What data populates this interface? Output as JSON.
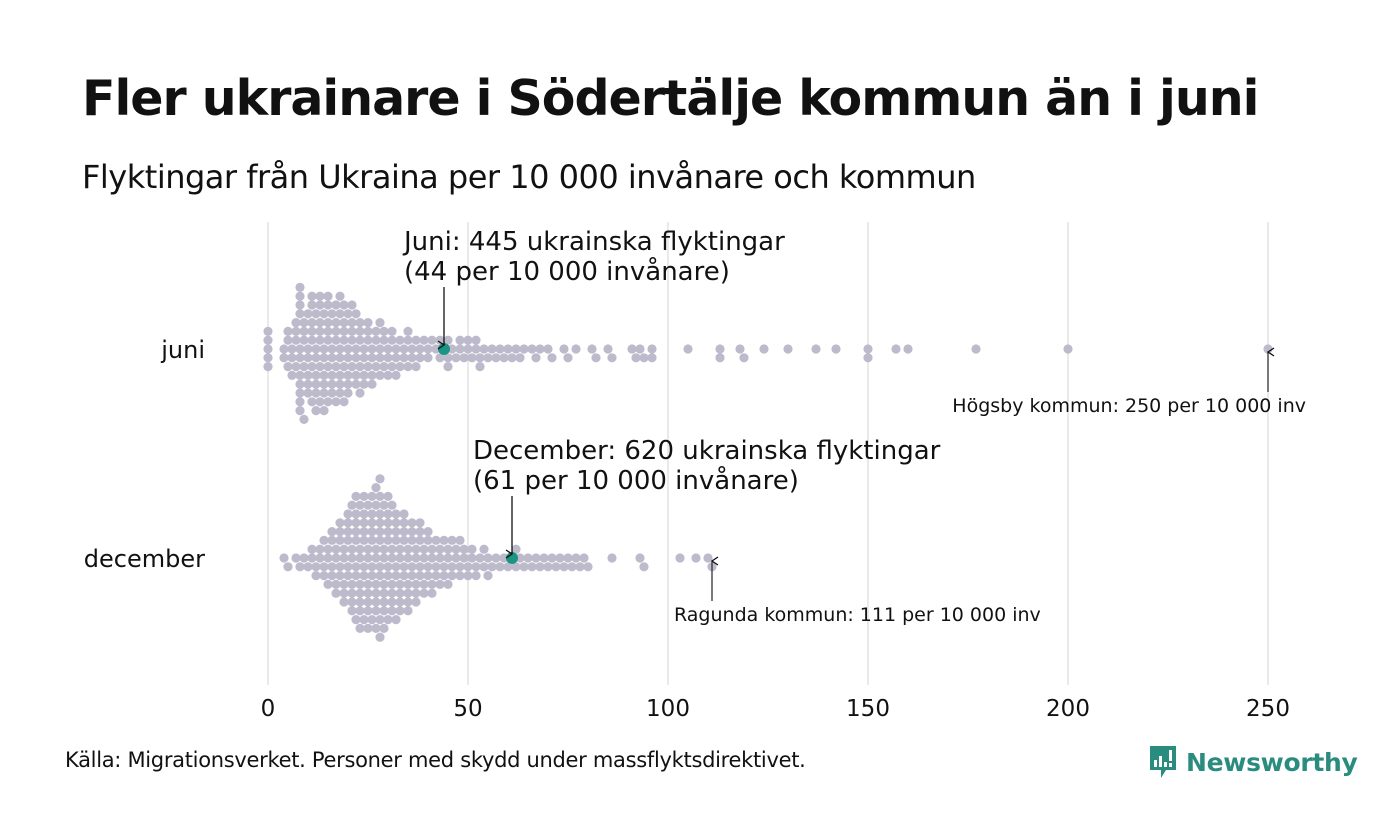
{
  "header": {
    "title": "Fler ukrainare i Södertälje kommun än i juni",
    "subtitle": "Flyktingar från Ukraina per 10 000 invånare och kommun"
  },
  "footer": {
    "source": "Källa: Migrationsverket. Personer med skydd under massflyktsdirektivet.",
    "logo_text": "Newsworthy",
    "logo_color": "#2a8c7e"
  },
  "chart_data": {
    "type": "scatter",
    "subtype": "beeswarm",
    "title": "Fler ukrainare i Södertälje kommun än i juni",
    "subtitle": "Flyktingar från Ukraina per 10 000 invånare och kommun",
    "xlabel": "",
    "ylabel": "",
    "xlim": [
      0,
      250
    ],
    "x_ticks": [
      0,
      50,
      100,
      150,
      200,
      250
    ],
    "x_tick_labels": [
      "0",
      "50",
      "100",
      "150",
      "200",
      "250"
    ],
    "grid": "vertical",
    "colors": {
      "dot": "#bdbbcb",
      "highlight": "#1b9484",
      "grid": "#d4d4d4"
    },
    "series": [
      {
        "name": "juni",
        "highlight": {
          "value": 44,
          "label_line1": "Juni: 445 ukrainska flyktingar",
          "label_line2": "(44 per 10 000 invånare)"
        },
        "max_annotation": {
          "value": 250,
          "label": "Högsby kommun: 250 per 10 000 inv"
        },
        "values": [
          0,
          0,
          0,
          0,
          0,
          4,
          4,
          5,
          5,
          5,
          6,
          6,
          6,
          7,
          7,
          7,
          7,
          8,
          8,
          8,
          8,
          8,
          8,
          8,
          8,
          8,
          8,
          8,
          9,
          9,
          9,
          9,
          9,
          10,
          10,
          10,
          10,
          10,
          10,
          11,
          11,
          11,
          11,
          11,
          11,
          11,
          12,
          12,
          12,
          12,
          12,
          12,
          12,
          13,
          13,
          13,
          13,
          13,
          13,
          13,
          14,
          14,
          14,
          14,
          14,
          14,
          14,
          15,
          15,
          15,
          15,
          15,
          15,
          15,
          16,
          16,
          16,
          16,
          16,
          16,
          17,
          17,
          17,
          17,
          17,
          17,
          18,
          18,
          18,
          18,
          18,
          18,
          18,
          19,
          19,
          19,
          19,
          19,
          19,
          20,
          20,
          20,
          20,
          20,
          20,
          21,
          21,
          21,
          21,
          21,
          22,
          22,
          22,
          22,
          22,
          23,
          23,
          23,
          23,
          23,
          24,
          24,
          24,
          24,
          25,
          25,
          25,
          25,
          26,
          26,
          26,
          26,
          27,
          27,
          27,
          28,
          28,
          28,
          28,
          29,
          29,
          29,
          30,
          30,
          30,
          31,
          31,
          31,
          32,
          32,
          32,
          33,
          33,
          34,
          34,
          35,
          35,
          35,
          36,
          36,
          37,
          37,
          38,
          38,
          39,
          40,
          40,
          41,
          42,
          43,
          43,
          44,
          45,
          45,
          45,
          46,
          47,
          48,
          48,
          49,
          50,
          50,
          51,
          52,
          52,
          53,
          53,
          54,
          55,
          56,
          57,
          58,
          59,
          60,
          61,
          62,
          63,
          64,
          66,
          67,
          68,
          70,
          71,
          74,
          75,
          77,
          81,
          82,
          85,
          86,
          91,
          92,
          93,
          94,
          96,
          96,
          105,
          113,
          113,
          118,
          119,
          124,
          130,
          137,
          142,
          150,
          150,
          157,
          160,
          177,
          200,
          250
        ]
      },
      {
        "name": "december",
        "highlight": {
          "value": 61,
          "label_line1": "December: 620 ukrainska flyktingar",
          "label_line2": "(61 per 10 000 invånare)"
        },
        "max_annotation": {
          "value": 111,
          "label": "Ragunda kommun: 111 per 10 000 inv"
        },
        "values": [
          4,
          5,
          7,
          8,
          9,
          10,
          11,
          11,
          12,
          12,
          13,
          13,
          14,
          14,
          14,
          15,
          15,
          15,
          16,
          16,
          16,
          16,
          17,
          17,
          17,
          17,
          18,
          18,
          18,
          18,
          18,
          19,
          19,
          19,
          19,
          19,
          20,
          20,
          20,
          20,
          20,
          20,
          21,
          21,
          21,
          21,
          21,
          21,
          21,
          22,
          22,
          22,
          22,
          22,
          22,
          22,
          22,
          23,
          23,
          23,
          23,
          23,
          23,
          23,
          23,
          24,
          24,
          24,
          24,
          24,
          24,
          24,
          24,
          25,
          25,
          25,
          25,
          25,
          25,
          25,
          25,
          26,
          26,
          26,
          26,
          26,
          26,
          26,
          26,
          27,
          27,
          27,
          27,
          27,
          27,
          27,
          27,
          27,
          28,
          28,
          28,
          28,
          28,
          28,
          28,
          28,
          28,
          28,
          29,
          29,
          29,
          29,
          29,
          29,
          29,
          29,
          30,
          30,
          30,
          30,
          30,
          30,
          30,
          30,
          31,
          31,
          31,
          31,
          31,
          31,
          31,
          32,
          32,
          32,
          32,
          32,
          32,
          32,
          33,
          33,
          33,
          33,
          33,
          33,
          34,
          34,
          34,
          34,
          34,
          34,
          35,
          35,
          35,
          35,
          35,
          35,
          36,
          36,
          36,
          36,
          36,
          37,
          37,
          37,
          37,
          37,
          38,
          38,
          38,
          38,
          38,
          39,
          39,
          39,
          39,
          40,
          40,
          40,
          40,
          41,
          41,
          41,
          41,
          42,
          42,
          42,
          43,
          43,
          43,
          44,
          44,
          44,
          45,
          45,
          45,
          46,
          46,
          46,
          47,
          47,
          48,
          48,
          48,
          49,
          49,
          50,
          50,
          51,
          51,
          52,
          52,
          53,
          54,
          54,
          55,
          55,
          56,
          57,
          58,
          59,
          60,
          61,
          62,
          62,
          63,
          64,
          65,
          66,
          67,
          68,
          69,
          70,
          71,
          72,
          73,
          74,
          75,
          76,
          77,
          78,
          79,
          80,
          86,
          93,
          94,
          103,
          107,
          110,
          111
        ]
      }
    ]
  }
}
